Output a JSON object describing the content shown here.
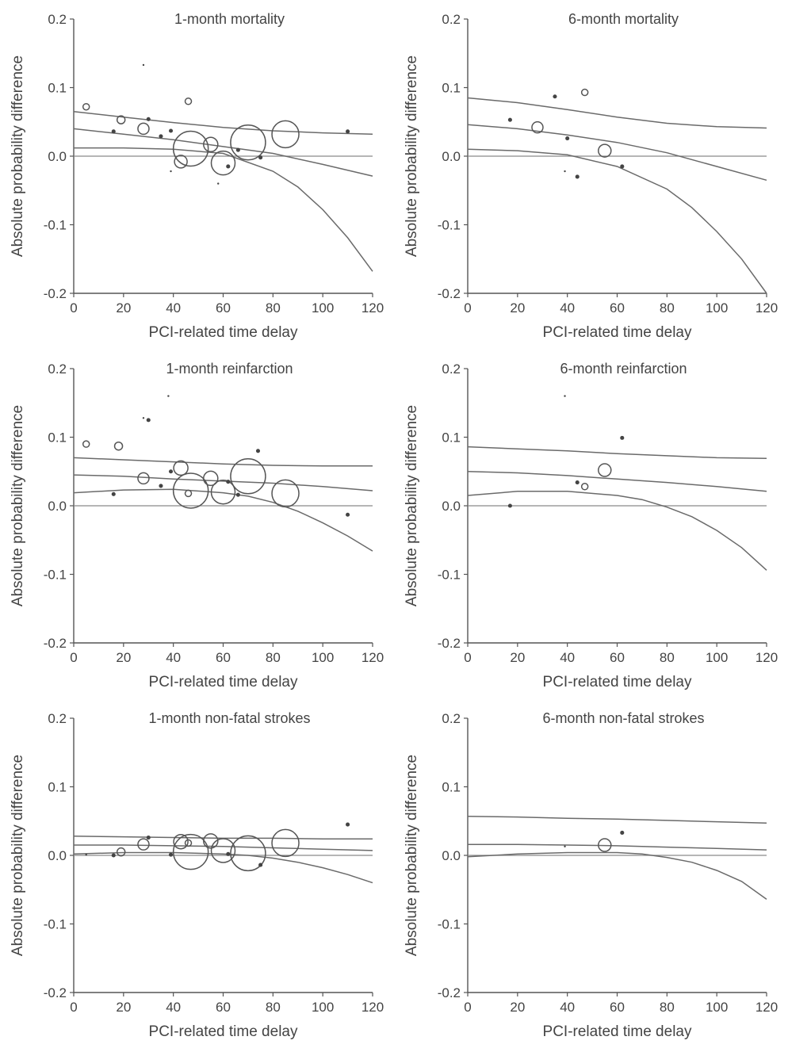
{
  "chart_data": [
    {
      "type": "scatter",
      "title": "1-month mortality",
      "xlabel": "PCI-related time delay",
      "ylabel": "Absolute probability difference",
      "xlim": [
        0,
        120
      ],
      "ylim": [
        -0.2,
        0.2
      ],
      "xticks": [
        "0",
        "20",
        "40",
        "60",
        "80",
        "100",
        "120"
      ],
      "yticks": [
        "0.2",
        "0.1",
        "0.0",
        "-0.1",
        "-0.2"
      ],
      "points": [
        {
          "x": 5,
          "y": 0.072,
          "w": 4,
          "open": true
        },
        {
          "x": 19,
          "y": 0.053,
          "w": 5,
          "open": true
        },
        {
          "x": 16,
          "y": 0.036,
          "w": 3,
          "open": false
        },
        {
          "x": 28,
          "y": 0.04,
          "w": 7,
          "open": true
        },
        {
          "x": 30,
          "y": 0.054,
          "w": 3,
          "open": false
        },
        {
          "x": 28,
          "y": 0.133,
          "w": 1,
          "open": false
        },
        {
          "x": 35,
          "y": 0.029,
          "w": 3,
          "open": false
        },
        {
          "x": 39,
          "y": 0.037,
          "w": 3,
          "open": false
        },
        {
          "x": 46,
          "y": 0.08,
          "w": 4,
          "open": true
        },
        {
          "x": 43,
          "y": -0.008,
          "w": 8,
          "open": true
        },
        {
          "x": 47,
          "y": 0.011,
          "w": 22,
          "open": true
        },
        {
          "x": 55,
          "y": 0.017,
          "w": 9,
          "open": true
        },
        {
          "x": 60,
          "y": -0.01,
          "w": 15,
          "open": true
        },
        {
          "x": 62,
          "y": -0.015,
          "w": 3,
          "open": false
        },
        {
          "x": 66,
          "y": 0.009,
          "w": 3,
          "open": false
        },
        {
          "x": 70,
          "y": 0.02,
          "w": 22,
          "open": true
        },
        {
          "x": 75,
          "y": -0.002,
          "w": 3,
          "open": false
        },
        {
          "x": 85,
          "y": 0.032,
          "w": 17,
          "open": true
        },
        {
          "x": 110,
          "y": 0.036,
          "w": 3,
          "open": false
        },
        {
          "x": 39,
          "y": -0.022,
          "w": 1,
          "open": false
        },
        {
          "x": 58,
          "y": -0.04,
          "w": 1,
          "open": false
        }
      ],
      "lines": [
        {
          "name": "upper",
          "x": [
            0,
            20,
            40,
            60,
            80,
            100,
            120
          ],
          "y": [
            0.065,
            0.057,
            0.049,
            0.042,
            0.037,
            0.034,
            0.032
          ]
        },
        {
          "name": "fit",
          "x": [
            0,
            20,
            40,
            60,
            80,
            100,
            120
          ],
          "y": [
            0.04,
            0.032,
            0.024,
            0.014,
            0.004,
            -0.012,
            -0.029
          ]
        },
        {
          "name": "lower",
          "x": [
            0,
            20,
            40,
            60,
            80,
            90,
            100,
            110,
            120
          ],
          "y": [
            0.012,
            0.012,
            0.01,
            0.004,
            -0.022,
            -0.045,
            -0.078,
            -0.119,
            -0.168
          ]
        }
      ]
    },
    {
      "type": "scatter",
      "title": "6-month mortality",
      "xlabel": "PCI-related time delay",
      "ylabel": "Absolute probability difference",
      "xlim": [
        0,
        120
      ],
      "ylim": [
        -0.2,
        0.2
      ],
      "xticks": [
        "0",
        "20",
        "40",
        "60",
        "80",
        "100",
        "120"
      ],
      "yticks": [
        "0.2",
        "0.1",
        "0.0",
        "-0.1",
        "-0.2"
      ],
      "points": [
        {
          "x": 17,
          "y": 0.053,
          "w": 3,
          "open": false
        },
        {
          "x": 28,
          "y": 0.042,
          "w": 7,
          "open": true
        },
        {
          "x": 35,
          "y": 0.087,
          "w": 3,
          "open": false
        },
        {
          "x": 47,
          "y": 0.093,
          "w": 4,
          "open": true
        },
        {
          "x": 40,
          "y": 0.026,
          "w": 3,
          "open": false
        },
        {
          "x": 44,
          "y": -0.03,
          "w": 3,
          "open": false
        },
        {
          "x": 55,
          "y": 0.008,
          "w": 8,
          "open": true
        },
        {
          "x": 62,
          "y": -0.015,
          "w": 3,
          "open": false
        },
        {
          "x": 39,
          "y": -0.022,
          "w": 1,
          "open": false
        }
      ],
      "lines": [
        {
          "name": "upper",
          "x": [
            0,
            20,
            40,
            60,
            80,
            100,
            120
          ],
          "y": [
            0.085,
            0.078,
            0.068,
            0.057,
            0.048,
            0.043,
            0.041
          ]
        },
        {
          "name": "fit",
          "x": [
            0,
            20,
            40,
            60,
            80,
            100,
            120
          ],
          "y": [
            0.046,
            0.04,
            0.031,
            0.02,
            0.005,
            -0.015,
            -0.035
          ]
        },
        {
          "name": "lower",
          "x": [
            0,
            20,
            40,
            60,
            80,
            90,
            100,
            110,
            120
          ],
          "y": [
            0.01,
            0.008,
            0.002,
            -0.015,
            -0.048,
            -0.075,
            -0.11,
            -0.15,
            -0.2
          ]
        }
      ]
    },
    {
      "type": "scatter",
      "title": "1-month reinfarction",
      "xlabel": "PCI-related time delay",
      "ylabel": "Absolute probability difference",
      "xlim": [
        0,
        120
      ],
      "ylim": [
        -0.2,
        0.2
      ],
      "xticks": [
        "0",
        "20",
        "40",
        "60",
        "80",
        "100",
        "120"
      ],
      "yticks": [
        "0.2",
        "0.1",
        "0.0",
        "-0.1",
        "-0.2"
      ],
      "points": [
        {
          "x": 5,
          "y": 0.09,
          "w": 4,
          "open": true
        },
        {
          "x": 18,
          "y": 0.087,
          "w": 5,
          "open": true
        },
        {
          "x": 16,
          "y": 0.017,
          "w": 3,
          "open": false
        },
        {
          "x": 28,
          "y": 0.04,
          "w": 7,
          "open": true
        },
        {
          "x": 30,
          "y": 0.125,
          "w": 3,
          "open": false
        },
        {
          "x": 28,
          "y": 0.128,
          "w": 1,
          "open": false
        },
        {
          "x": 38,
          "y": 0.16,
          "w": 1,
          "open": false
        },
        {
          "x": 35,
          "y": 0.029,
          "w": 3,
          "open": false
        },
        {
          "x": 39,
          "y": 0.05,
          "w": 3,
          "open": false
        },
        {
          "x": 43,
          "y": 0.055,
          "w": 9,
          "open": true
        },
        {
          "x": 46,
          "y": 0.018,
          "w": 4,
          "open": true
        },
        {
          "x": 47,
          "y": 0.022,
          "w": 22,
          "open": true
        },
        {
          "x": 55,
          "y": 0.04,
          "w": 9,
          "open": true
        },
        {
          "x": 60,
          "y": 0.02,
          "w": 15,
          "open": true
        },
        {
          "x": 62,
          "y": 0.035,
          "w": 3,
          "open": false
        },
        {
          "x": 66,
          "y": 0.016,
          "w": 3,
          "open": false
        },
        {
          "x": 70,
          "y": 0.043,
          "w": 22,
          "open": true
        },
        {
          "x": 74,
          "y": 0.08,
          "w": 3,
          "open": false
        },
        {
          "x": 85,
          "y": 0.018,
          "w": 17,
          "open": true
        },
        {
          "x": 110,
          "y": -0.013,
          "w": 3,
          "open": false
        }
      ],
      "lines": [
        {
          "name": "upper",
          "x": [
            0,
            20,
            40,
            60,
            80,
            100,
            120
          ],
          "y": [
            0.07,
            0.067,
            0.064,
            0.061,
            0.059,
            0.058,
            0.058
          ]
        },
        {
          "name": "fit",
          "x": [
            0,
            20,
            40,
            60,
            80,
            100,
            120
          ],
          "y": [
            0.045,
            0.043,
            0.039,
            0.036,
            0.033,
            0.028,
            0.022
          ]
        },
        {
          "name": "lower",
          "x": [
            0,
            20,
            40,
            60,
            70,
            80,
            90,
            100,
            110,
            120
          ],
          "y": [
            0.019,
            0.023,
            0.024,
            0.019,
            0.014,
            0.005,
            -0.008,
            -0.025,
            -0.044,
            -0.066
          ]
        }
      ]
    },
    {
      "type": "scatter",
      "title": "6-month reinfarction",
      "xlabel": "PCI-related time delay",
      "ylabel": "Absolute probability difference",
      "xlim": [
        0,
        120
      ],
      "ylim": [
        -0.2,
        0.2
      ],
      "xticks": [
        "0",
        "20",
        "40",
        "60",
        "80",
        "100",
        "120"
      ],
      "yticks": [
        "0.2",
        "0.1",
        "0.0",
        "-0.1",
        "-0.2"
      ],
      "points": [
        {
          "x": 17,
          "y": 0.0,
          "w": 3,
          "open": false
        },
        {
          "x": 39,
          "y": 0.16,
          "w": 1,
          "open": false
        },
        {
          "x": 44,
          "y": 0.034,
          "w": 3,
          "open": false
        },
        {
          "x": 47,
          "y": 0.028,
          "w": 4,
          "open": true
        },
        {
          "x": 55,
          "y": 0.052,
          "w": 8,
          "open": true
        },
        {
          "x": 62,
          "y": 0.099,
          "w": 3,
          "open": false
        }
      ],
      "lines": [
        {
          "name": "upper",
          "x": [
            0,
            20,
            40,
            60,
            80,
            100,
            120
          ],
          "y": [
            0.086,
            0.083,
            0.08,
            0.076,
            0.073,
            0.07,
            0.069
          ]
        },
        {
          "name": "fit",
          "x": [
            0,
            20,
            40,
            60,
            80,
            100,
            120
          ],
          "y": [
            0.05,
            0.048,
            0.044,
            0.039,
            0.034,
            0.028,
            0.021
          ]
        },
        {
          "name": "lower",
          "x": [
            0,
            20,
            40,
            60,
            70,
            80,
            90,
            100,
            110,
            120
          ],
          "y": [
            0.015,
            0.021,
            0.021,
            0.015,
            0.009,
            -0.002,
            -0.016,
            -0.036,
            -0.061,
            -0.094
          ]
        }
      ]
    },
    {
      "type": "scatter",
      "title": "1-month non-fatal strokes",
      "xlabel": "PCI-related time delay",
      "ylabel": "Absolute probability difference",
      "xlim": [
        0,
        120
      ],
      "ylim": [
        -0.2,
        0.2
      ],
      "xticks": [
        "0",
        "20",
        "40",
        "60",
        "80",
        "100",
        "120"
      ],
      "yticks": [
        "0.2",
        "0.1",
        "0.0",
        "-0.1",
        "-0.2"
      ],
      "points": [
        {
          "x": 5,
          "y": 0.001,
          "w": 1,
          "open": false
        },
        {
          "x": 16,
          "y": 0.0,
          "w": 3,
          "open": false
        },
        {
          "x": 19,
          "y": 0.005,
          "w": 5,
          "open": true
        },
        {
          "x": 28,
          "y": 0.016,
          "w": 7,
          "open": true
        },
        {
          "x": 30,
          "y": 0.026,
          "w": 3,
          "open": false
        },
        {
          "x": 39,
          "y": 0.001,
          "w": 3,
          "open": false
        },
        {
          "x": 43,
          "y": 0.02,
          "w": 9,
          "open": true
        },
        {
          "x": 46,
          "y": 0.018,
          "w": 4,
          "open": true
        },
        {
          "x": 47,
          "y": 0.005,
          "w": 22,
          "open": true
        },
        {
          "x": 55,
          "y": 0.021,
          "w": 9,
          "open": true
        },
        {
          "x": 60,
          "y": 0.007,
          "w": 15,
          "open": true
        },
        {
          "x": 62,
          "y": 0.002,
          "w": 3,
          "open": false
        },
        {
          "x": 70,
          "y": 0.003,
          "w": 22,
          "open": true
        },
        {
          "x": 75,
          "y": -0.014,
          "w": 3,
          "open": false
        },
        {
          "x": 85,
          "y": 0.018,
          "w": 17,
          "open": true
        },
        {
          "x": 110,
          "y": 0.045,
          "w": 3,
          "open": false
        }
      ],
      "lines": [
        {
          "name": "upper",
          "x": [
            0,
            20,
            40,
            60,
            80,
            100,
            120
          ],
          "y": [
            0.028,
            0.027,
            0.026,
            0.025,
            0.025,
            0.024,
            0.024
          ]
        },
        {
          "name": "fit",
          "x": [
            0,
            20,
            40,
            60,
            80,
            100,
            120
          ],
          "y": [
            0.015,
            0.015,
            0.014,
            0.013,
            0.011,
            0.009,
            0.007
          ]
        },
        {
          "name": "lower",
          "x": [
            0,
            20,
            40,
            60,
            70,
            80,
            90,
            100,
            110,
            120
          ],
          "y": [
            0.002,
            0.004,
            0.004,
            0.002,
            0.0,
            -0.004,
            -0.01,
            -0.018,
            -0.028,
            -0.04
          ]
        }
      ]
    },
    {
      "type": "scatter",
      "title": "6-month non-fatal strokes",
      "xlabel": "PCI-related time delay",
      "ylabel": "Absolute probability difference",
      "xlim": [
        0,
        120
      ],
      "ylim": [
        -0.2,
        0.2
      ],
      "xticks": [
        "0",
        "20",
        "40",
        "60",
        "80",
        "100",
        "120"
      ],
      "yticks": [
        "0.2",
        "0.1",
        "0.0",
        "-0.1",
        "-0.2"
      ],
      "points": [
        {
          "x": 39,
          "y": 0.013,
          "w": 1,
          "open": false
        },
        {
          "x": 55,
          "y": 0.015,
          "w": 8,
          "open": true
        },
        {
          "x": 62,
          "y": 0.033,
          "w": 3,
          "open": false
        }
      ],
      "lines": [
        {
          "name": "upper",
          "x": [
            0,
            20,
            40,
            60,
            80,
            100,
            120
          ],
          "y": [
            0.057,
            0.056,
            0.054,
            0.053,
            0.051,
            0.049,
            0.047
          ]
        },
        {
          "name": "fit",
          "x": [
            0,
            20,
            40,
            60,
            80,
            100,
            120
          ],
          "y": [
            0.016,
            0.016,
            0.015,
            0.014,
            0.012,
            0.01,
            0.008
          ]
        },
        {
          "name": "lower",
          "x": [
            0,
            20,
            40,
            60,
            70,
            80,
            90,
            100,
            110,
            120
          ],
          "y": [
            -0.002,
            0.002,
            0.004,
            0.004,
            0.002,
            -0.003,
            -0.01,
            -0.022,
            -0.038,
            -0.064
          ]
        }
      ]
    }
  ]
}
